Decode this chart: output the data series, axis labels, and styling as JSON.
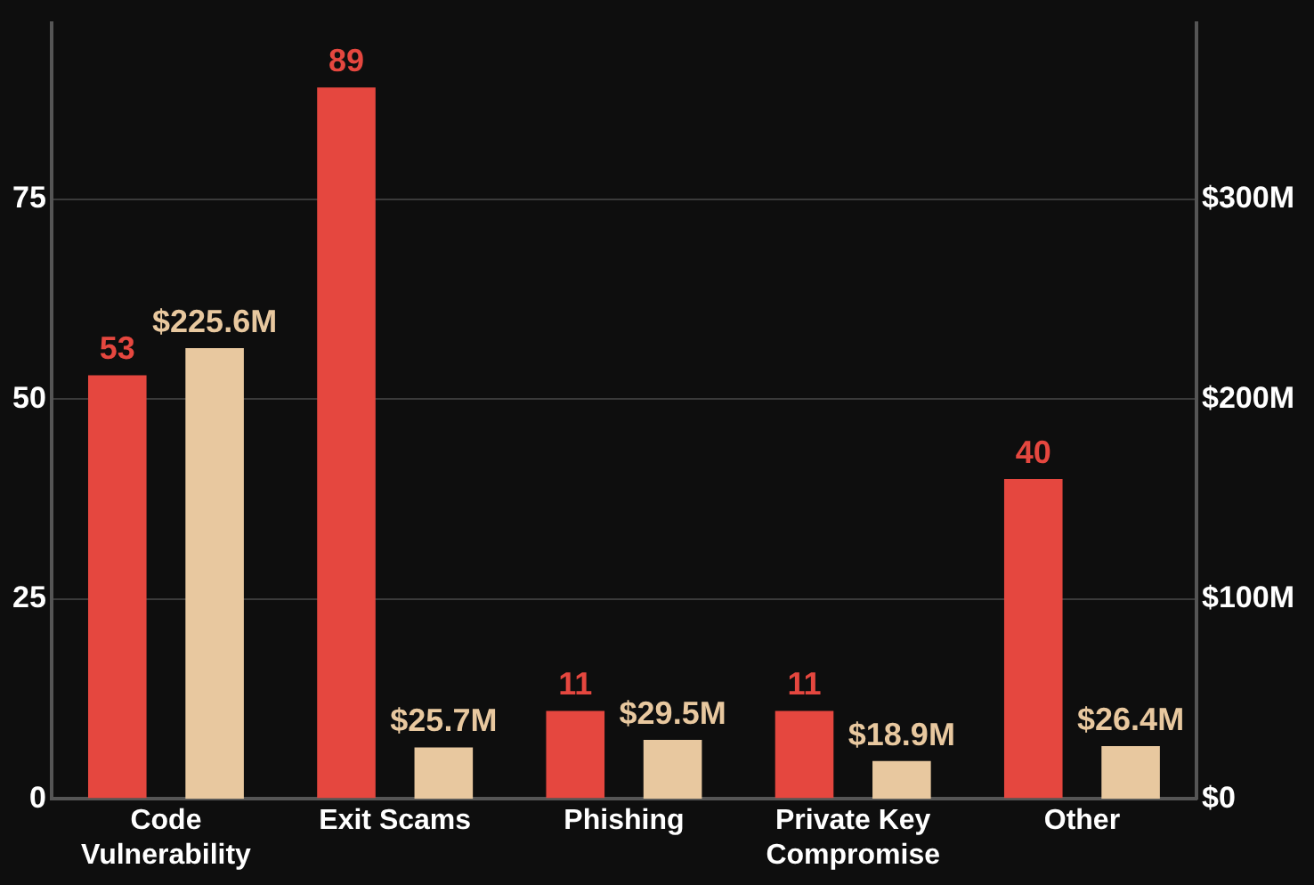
{
  "chart_data": {
    "type": "bar",
    "categories": [
      "Code Vulnerability",
      "Exit Scams",
      "Phishing",
      "Private Key Compromise",
      "Other"
    ],
    "series": [
      {
        "color": "#e5473f",
        "values": [
          53,
          89,
          11,
          11,
          40
        ],
        "value_labels": [
          "53",
          "89",
          "11",
          "11",
          "40"
        ]
      },
      {
        "color": "#e8c89f",
        "values": [
          225.6,
          25.7,
          29.5,
          18.9,
          26.4
        ],
        "axis": "y2",
        "value_labels": [
          "$225.6M",
          "$25.7M",
          "$29.5M",
          "$18.9M",
          "$26.4M"
        ]
      }
    ],
    "ylim": [
      0,
      97
    ],
    "yticks": [
      0,
      25,
      50,
      75
    ],
    "y2lim": [
      0,
      388
    ],
    "y2ticks": [
      {
        "value": 0,
        "label": "$0"
      },
      {
        "value": 100,
        "label": "$100M"
      },
      {
        "value": 200,
        "label": "$200M"
      },
      {
        "value": 300,
        "label": "$300M"
      }
    ],
    "grid": "y",
    "legend": false
  }
}
